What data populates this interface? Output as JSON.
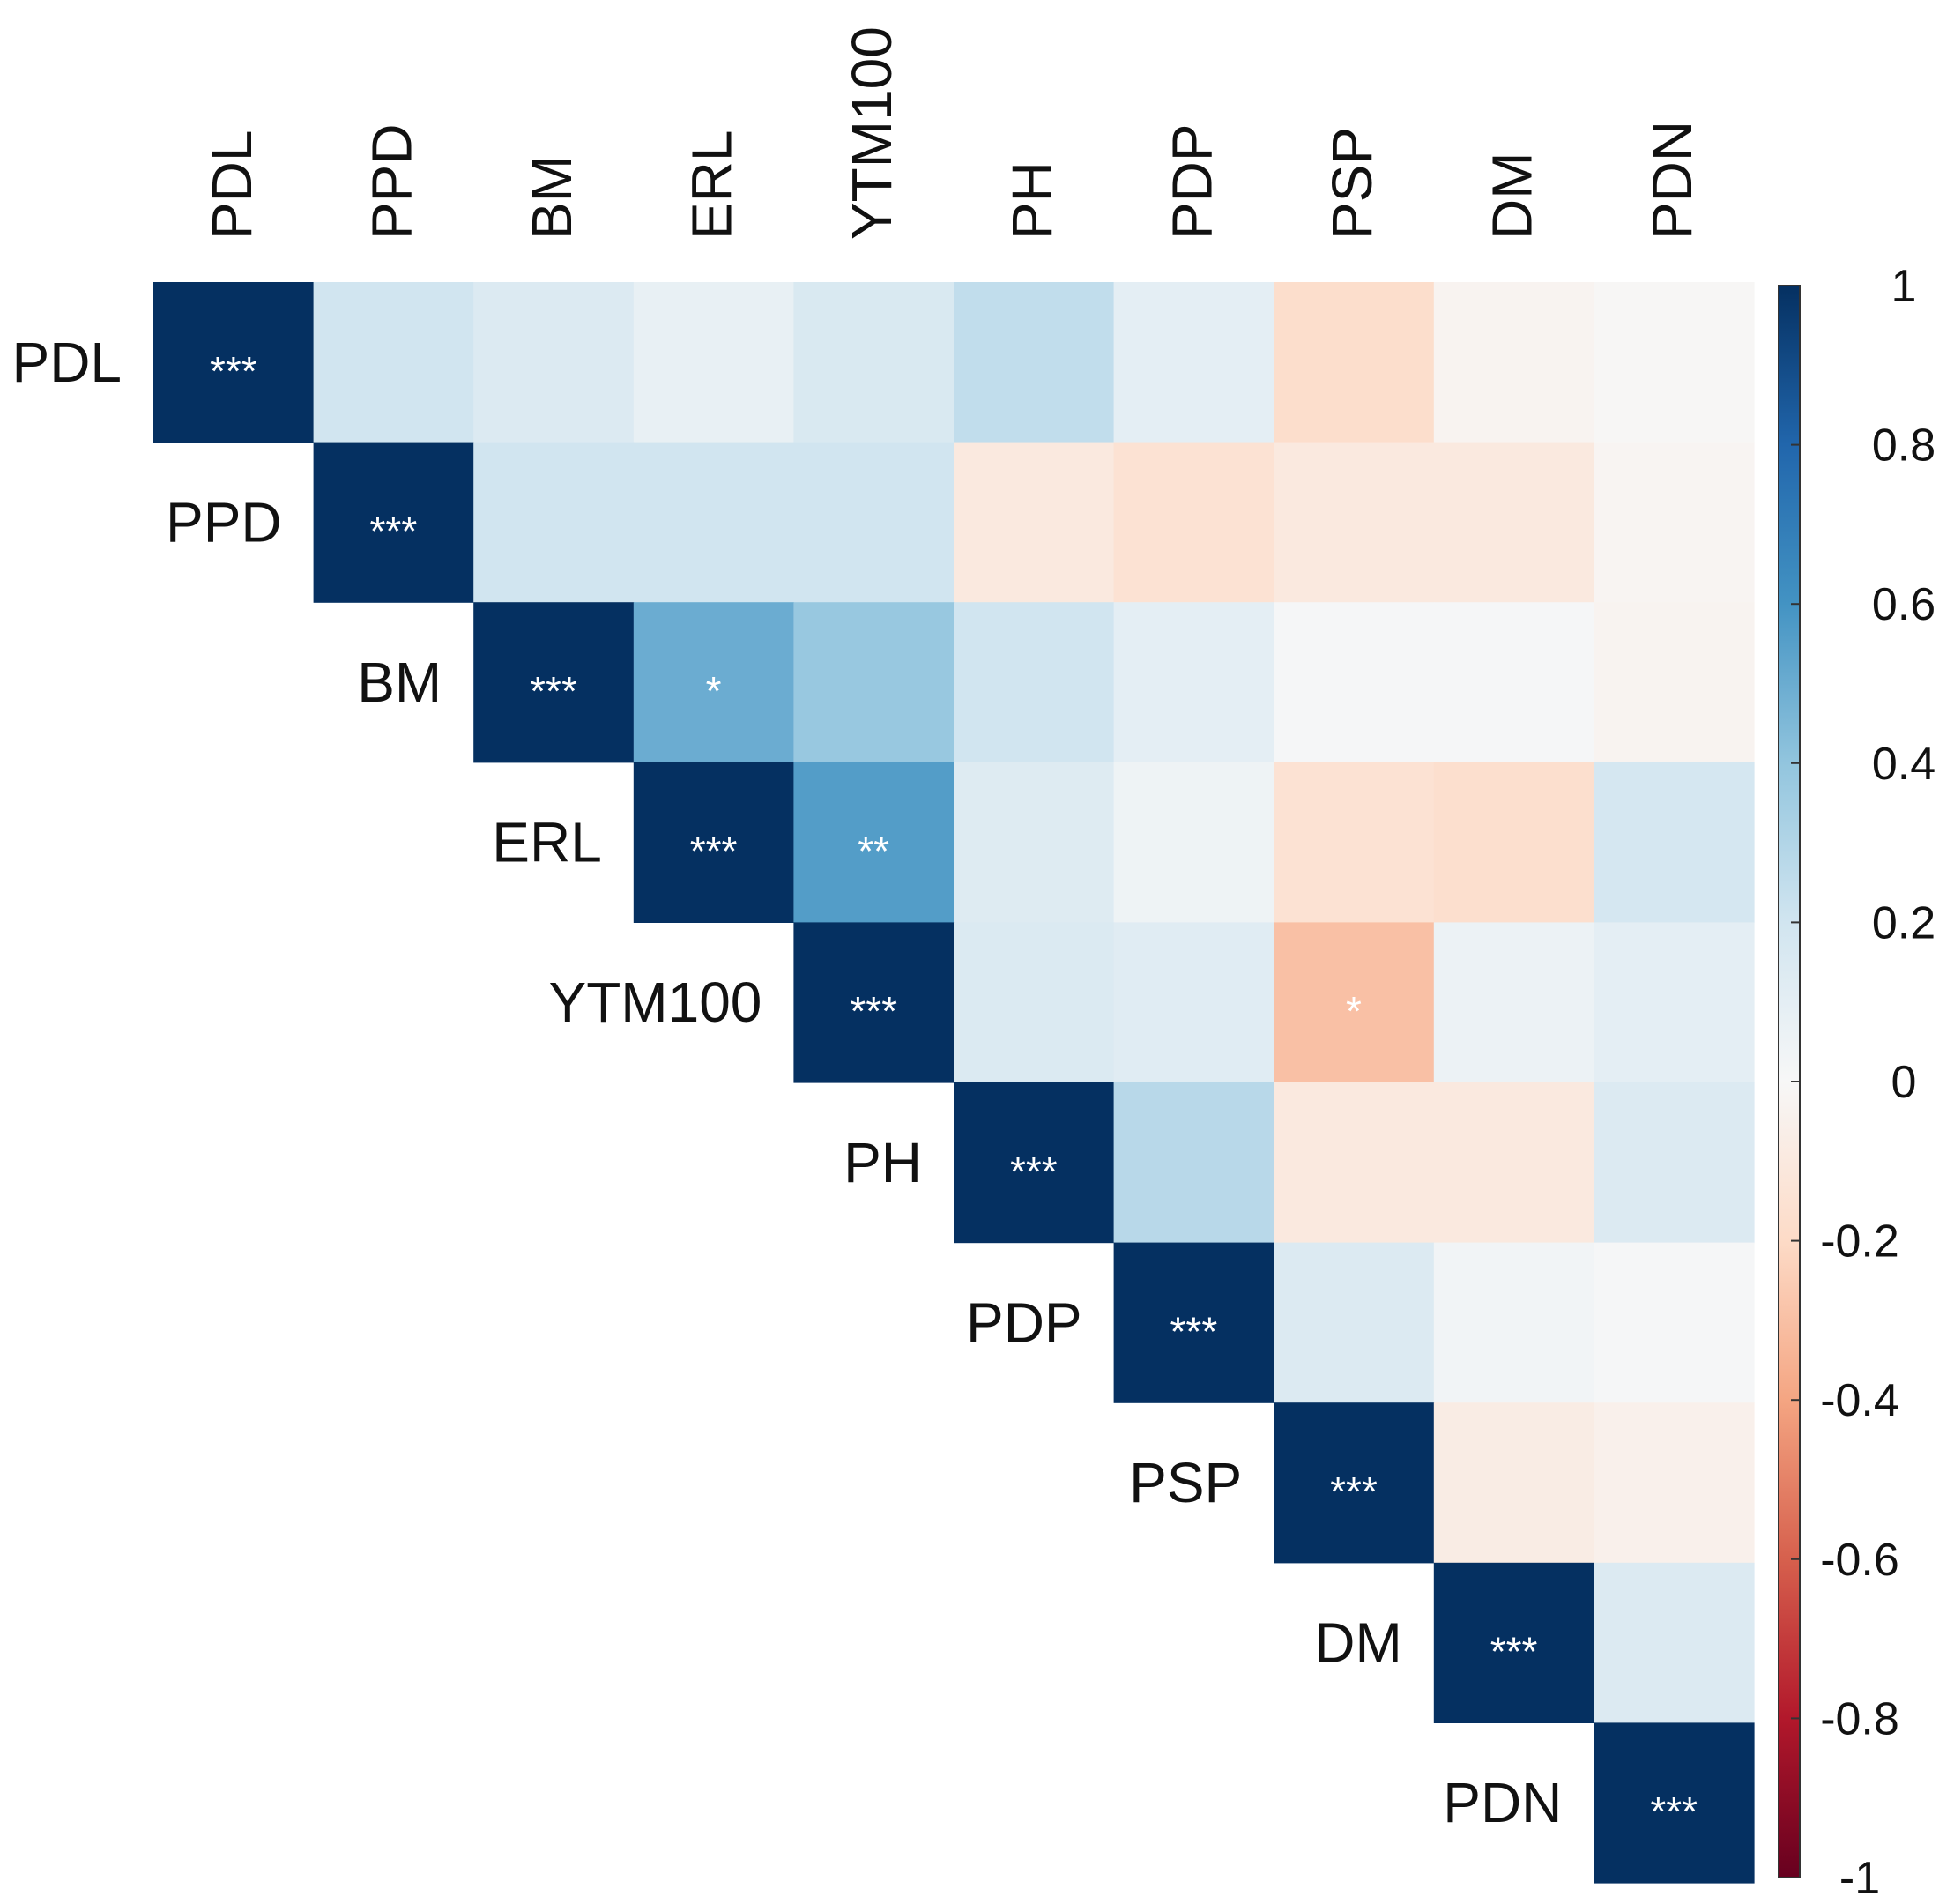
{
  "chart_data": {
    "type": "heatmap",
    "variables": [
      "PDL",
      "PPD",
      "BM",
      "ERL",
      "YTM100",
      "PH",
      "PDP",
      "PSP",
      "DM",
      "PDN"
    ],
    "layout": "upper-triangle",
    "values": [
      [
        1,
        0.2,
        0.14,
        0.08,
        0.16,
        0.25,
        0.1,
        -0.18,
        -0.03,
        -0.01
      ],
      [
        null,
        1,
        0.2,
        0.2,
        0.2,
        -0.1,
        -0.15,
        -0.1,
        -0.1,
        -0.02
      ],
      [
        null,
        null,
        1,
        0.5,
        0.38,
        0.2,
        0.1,
        0.01,
        0.01,
        -0.03
      ],
      [
        null,
        null,
        null,
        1,
        0.56,
        0.13,
        0.05,
        -0.15,
        -0.17,
        0.18
      ],
      [
        null,
        null,
        null,
        null,
        1,
        0.15,
        0.12,
        -0.3,
        0.06,
        0.1
      ],
      [
        null,
        null,
        null,
        null,
        null,
        1,
        0.28,
        -0.1,
        -0.1,
        0.14
      ],
      [
        null,
        null,
        null,
        null,
        null,
        null,
        1,
        0.14,
        0.03,
        0.01
      ],
      [
        null,
        null,
        null,
        null,
        null,
        null,
        null,
        1,
        -0.08,
        -0.05
      ],
      [
        null,
        null,
        null,
        null,
        null,
        null,
        null,
        null,
        1,
        0.14
      ],
      [
        null,
        null,
        null,
        null,
        null,
        null,
        null,
        null,
        null,
        1
      ]
    ],
    "significance": [
      [
        "***",
        "",
        "",
        "",
        "",
        "",
        "",
        "",
        "",
        ""
      ],
      [
        "",
        "***",
        "",
        "",
        "",
        "",
        "",
        "",
        "",
        ""
      ],
      [
        "",
        "",
        "***",
        "*",
        "",
        "",
        "",
        "",
        "",
        ""
      ],
      [
        "",
        "",
        "",
        "***",
        "**",
        "",
        "",
        "",
        "",
        ""
      ],
      [
        "",
        "",
        "",
        "",
        "***",
        "",
        "",
        "*",
        "",
        ""
      ],
      [
        "",
        "",
        "",
        "",
        "",
        "***",
        "",
        "",
        "",
        ""
      ],
      [
        "",
        "",
        "",
        "",
        "",
        "",
        "***",
        "",
        "",
        ""
      ],
      [
        "",
        "",
        "",
        "",
        "",
        "",
        "",
        "***",
        "",
        ""
      ],
      [
        "",
        "",
        "",
        "",
        "",
        "",
        "",
        "",
        "***",
        ""
      ],
      [
        "",
        "",
        "",
        "",
        "",
        "",
        "",
        "",
        "",
        "***"
      ]
    ],
    "colorbar": {
      "range": [
        -1,
        1
      ],
      "ticks": [
        "1",
        "0.8",
        "0.6",
        "0.4",
        "0.2",
        "0",
        "-0.2",
        "-0.4",
        "-0.6",
        "-0.8",
        "-1"
      ],
      "tick_values": [
        1,
        0.8,
        0.6,
        0.4,
        0.2,
        0,
        -0.2,
        -0.4,
        -0.6,
        -0.8,
        -1
      ]
    },
    "colors": {
      "negative_end": "#67001f",
      "mid": "#ffffff",
      "positive_end": "#053061",
      "stops": [
        "#67001f",
        "#b2182b",
        "#d6604d",
        "#f4a582",
        "#fddbc7",
        "#f7f7f7",
        "#d1e5f0",
        "#92c5de",
        "#4393c3",
        "#2166ac",
        "#053061"
      ]
    }
  }
}
